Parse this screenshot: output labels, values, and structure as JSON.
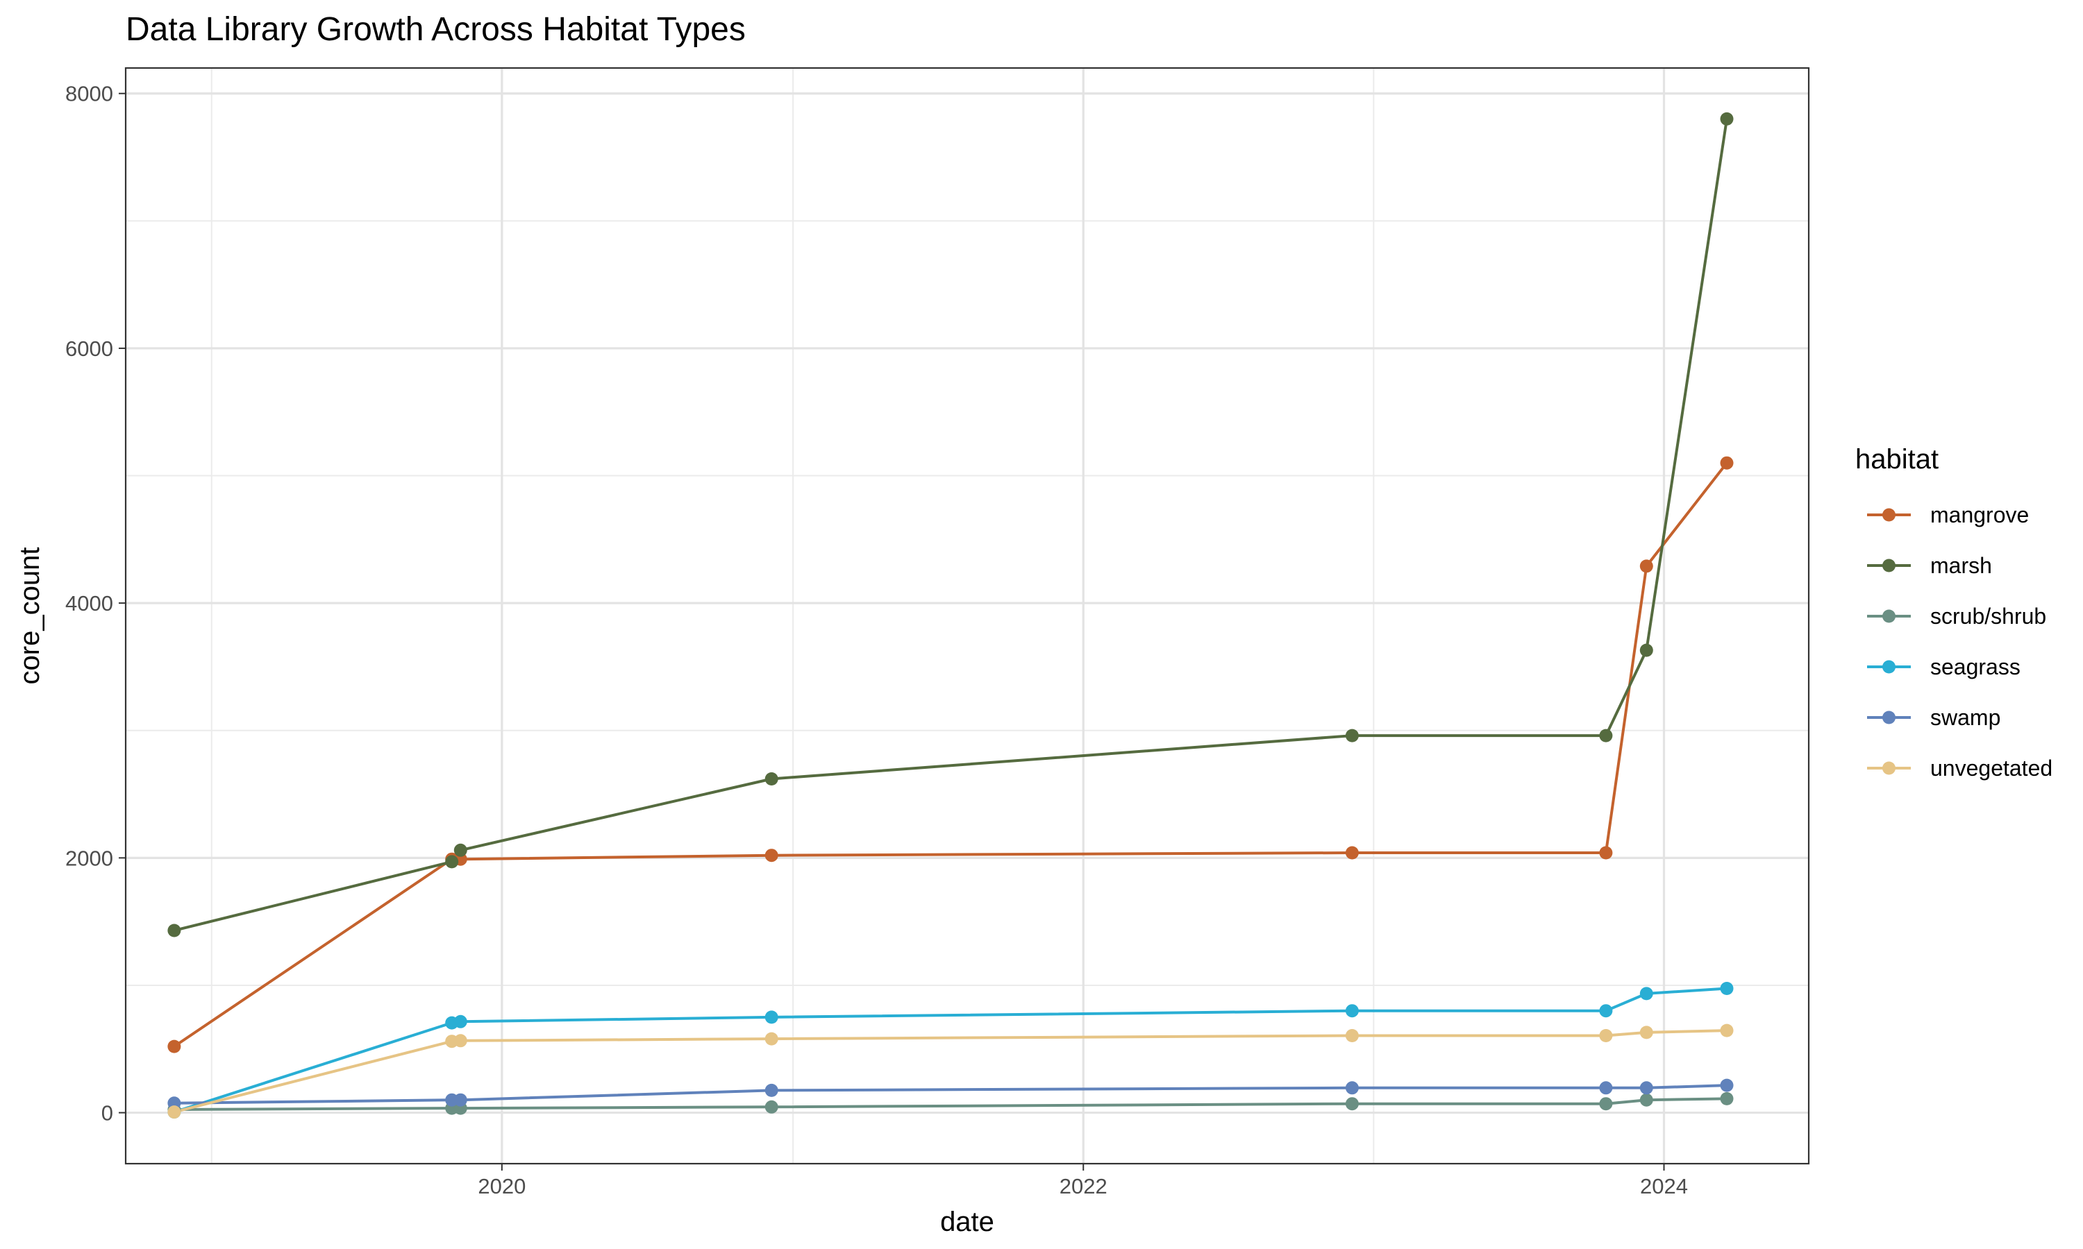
{
  "chart_data": {
    "type": "line",
    "title": "Data Library Growth Across Habitat Types",
    "xlabel": "date",
    "ylabel": "core_count",
    "xlim": [
      "2018-09-15",
      "2024-07-01"
    ],
    "ylim": [
      -400,
      8200
    ],
    "x_ticks": [
      {
        "label": "2020",
        "date": "2020-01-01"
      },
      {
        "label": "2022",
        "date": "2022-01-01"
      },
      {
        "label": "2024",
        "date": "2024-01-01"
      }
    ],
    "x_minor_ticks": [
      "2019-01-01",
      "2021-01-01",
      "2023-01-01"
    ],
    "y_ticks": [
      0,
      2000,
      4000,
      6000,
      8000
    ],
    "y_minor_ticks": [
      1000,
      3000,
      5000,
      7000
    ],
    "grid": true,
    "legend": {
      "title": "habitat",
      "position": "right"
    },
    "series": [
      {
        "name": "mangrove",
        "color": "#c4622d",
        "points": [
          {
            "x": "2018-11-15",
            "y": 520
          },
          {
            "x": "2019-10-30",
            "y": 1990
          },
          {
            "x": "2019-11-10",
            "y": 1990
          },
          {
            "x": "2020-12-05",
            "y": 2020
          },
          {
            "x": "2022-12-05",
            "y": 2040
          },
          {
            "x": "2023-10-20",
            "y": 2040
          },
          {
            "x": "2023-12-10",
            "y": 4290
          },
          {
            "x": "2024-03-20",
            "y": 5100
          }
        ]
      },
      {
        "name": "marsh",
        "color": "#556b3f",
        "points": [
          {
            "x": "2018-11-15",
            "y": 1430
          },
          {
            "x": "2019-10-30",
            "y": 1970
          },
          {
            "x": "2019-11-10",
            "y": 2060
          },
          {
            "x": "2020-12-05",
            "y": 2620
          },
          {
            "x": "2022-12-05",
            "y": 2960
          },
          {
            "x": "2023-10-20",
            "y": 2960
          },
          {
            "x": "2023-12-10",
            "y": 3630
          },
          {
            "x": "2024-03-20",
            "y": 7800
          }
        ]
      },
      {
        "name": "scrub/shrub",
        "color": "#6a8f83",
        "points": [
          {
            "x": "2018-11-15",
            "y": 25
          },
          {
            "x": "2019-10-30",
            "y": 35
          },
          {
            "x": "2019-11-10",
            "y": 35
          },
          {
            "x": "2020-12-05",
            "y": 45
          },
          {
            "x": "2022-12-05",
            "y": 70
          },
          {
            "x": "2023-10-20",
            "y": 70
          },
          {
            "x": "2023-12-10",
            "y": 100
          },
          {
            "x": "2024-03-20",
            "y": 110
          }
        ]
      },
      {
        "name": "seagrass",
        "color": "#29aed4",
        "points": [
          {
            "x": "2018-11-15",
            "y": 5
          },
          {
            "x": "2019-10-30",
            "y": 705
          },
          {
            "x": "2019-11-10",
            "y": 715
          },
          {
            "x": "2020-12-05",
            "y": 750
          },
          {
            "x": "2022-12-05",
            "y": 800
          },
          {
            "x": "2023-10-20",
            "y": 800
          },
          {
            "x": "2023-12-10",
            "y": 935
          },
          {
            "x": "2024-03-20",
            "y": 975
          }
        ]
      },
      {
        "name": "swamp",
        "color": "#6082bb",
        "points": [
          {
            "x": "2018-11-15",
            "y": 75
          },
          {
            "x": "2019-10-30",
            "y": 100
          },
          {
            "x": "2019-11-10",
            "y": 100
          },
          {
            "x": "2020-12-05",
            "y": 175
          },
          {
            "x": "2022-12-05",
            "y": 195
          },
          {
            "x": "2023-10-20",
            "y": 195
          },
          {
            "x": "2023-12-10",
            "y": 195
          },
          {
            "x": "2024-03-20",
            "y": 215
          }
        ]
      },
      {
        "name": "unvegetated",
        "color": "#e6c485",
        "points": [
          {
            "x": "2018-11-15",
            "y": 5
          },
          {
            "x": "2019-10-30",
            "y": 560
          },
          {
            "x": "2019-11-10",
            "y": 565
          },
          {
            "x": "2020-12-05",
            "y": 580
          },
          {
            "x": "2022-12-05",
            "y": 605
          },
          {
            "x": "2023-10-20",
            "y": 605
          },
          {
            "x": "2023-12-10",
            "y": 630
          },
          {
            "x": "2024-03-20",
            "y": 645
          }
        ]
      }
    ]
  }
}
